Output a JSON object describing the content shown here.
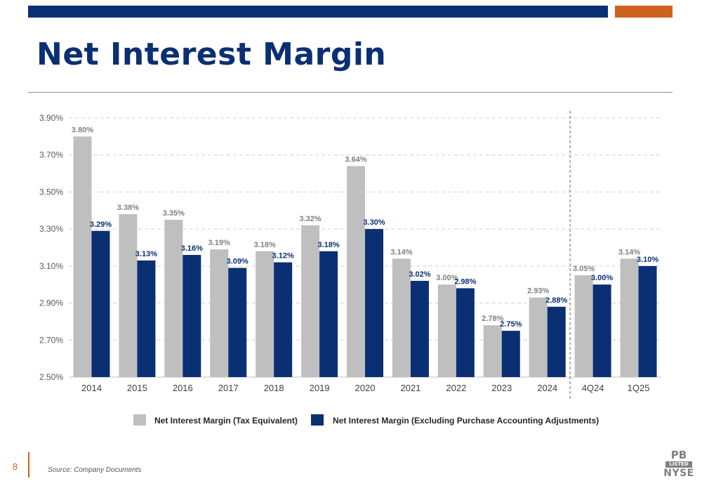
{
  "header": {
    "title": "Net Interest Margin"
  },
  "footer": {
    "page_number": "8",
    "source": "Source: Company Documents",
    "logo": {
      "top": "PB",
      "middle": "LISTED",
      "bottom": "NYSE"
    }
  },
  "colors": {
    "navy": "#0b2f73",
    "orange": "#d0621f",
    "gray_bar": "#bfbfbf",
    "gray_label": "#808080"
  },
  "chart_data": {
    "type": "bar",
    "title": "",
    "xlabel": "",
    "ylabel": "",
    "categories": [
      "2014",
      "2015",
      "2016",
      "2017",
      "2018",
      "2019",
      "2020",
      "2021",
      "2022",
      "2023",
      "2024",
      "4Q24",
      "1Q25"
    ],
    "series": [
      {
        "name": "Net Interest Margin (Tax Equivalent)",
        "values": [
          3.8,
          3.38,
          3.35,
          3.19,
          3.18,
          3.32,
          3.64,
          3.14,
          3.0,
          2.78,
          2.93,
          3.05,
          3.14
        ],
        "labels": [
          "3.80%",
          "3.38%",
          "3.35%",
          "3.19%",
          "3.18%",
          "3.32%",
          "3.64%",
          "3.14%",
          "3.00%",
          "2.78%",
          "2.93%",
          "3.05%",
          "3.14%"
        ],
        "color": "#bfbfbf"
      },
      {
        "name": "Net Interest Margin (Excluding Purchase Accounting Adjustments)",
        "values": [
          3.29,
          3.13,
          3.16,
          3.09,
          3.12,
          3.18,
          3.3,
          3.02,
          2.98,
          2.75,
          2.88,
          3.0,
          3.1
        ],
        "labels": [
          "3.29%",
          "3.13%",
          "3.16%",
          "3.09%",
          "3.12%",
          "3.18%",
          "3.30%",
          "3.02%",
          "2.98%",
          "2.75%",
          "2.88%",
          "3.00%",
          "3.10%"
        ],
        "color": "#0b2f73"
      }
    ],
    "ylim": [
      2.5,
      3.9
    ],
    "yticks": [
      2.5,
      2.7,
      2.9,
      3.1,
      3.3,
      3.5,
      3.7,
      3.9
    ],
    "ytick_labels": [
      "2.50%",
      "2.70%",
      "2.90%",
      "3.10%",
      "3.30%",
      "3.50%",
      "3.70%",
      "3.90%"
    ],
    "grid": true,
    "divider_after_category": "2024",
    "legend_position": "bottom"
  }
}
